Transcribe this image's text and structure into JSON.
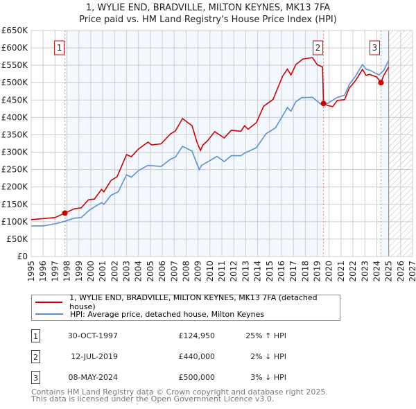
{
  "chart_data": {
    "type": "line",
    "title": "1, WYLIE END, BRADVILLE, MILTON KEYNES, MK13 7FA",
    "subtitle": "Price paid vs. HM Land Registry's House Price Index (HPI)",
    "xlim": [
      1995,
      2027
    ],
    "ylim": [
      0,
      650000
    ],
    "x_ticks": [
      "1995",
      "1996",
      "1997",
      "1998",
      "1999",
      "2000",
      "2001",
      "2002",
      "2003",
      "2004",
      "2005",
      "2006",
      "2007",
      "2008",
      "2009",
      "2010",
      "2011",
      "2012",
      "2013",
      "2014",
      "2015",
      "2016",
      "2017",
      "2018",
      "2019",
      "2020",
      "2021",
      "2022",
      "2023",
      "2024",
      "2025",
      "2026",
      "2027"
    ],
    "y_ticks": [
      {
        "value": 0,
        "label": "£0"
      },
      {
        "value": 50000,
        "label": "£50K"
      },
      {
        "value": 100000,
        "label": "£100K"
      },
      {
        "value": 150000,
        "label": "£150K"
      },
      {
        "value": 200000,
        "label": "£200K"
      },
      {
        "value": 250000,
        "label": "£250K"
      },
      {
        "value": 300000,
        "label": "£300K"
      },
      {
        "value": 350000,
        "label": "£350K"
      },
      {
        "value": 400000,
        "label": "£400K"
      },
      {
        "value": 450000,
        "label": "£450K"
      },
      {
        "value": 500000,
        "label": "£500K"
      },
      {
        "value": 550000,
        "label": "£550K"
      },
      {
        "value": 600000,
        "label": "£600K"
      },
      {
        "value": 650000,
        "label": "£650K"
      }
    ],
    "grid": true,
    "forecast_hatch_from": 2025.0,
    "ownership_shading": [
      [
        1997.83,
        2019.53
      ],
      [
        2024.35,
        2025.0
      ]
    ],
    "series": [
      {
        "name": "1, WYLIE END, BRADVILLE, MILTON KEYNES, MK13 7FA (detached house)",
        "color": "#cc0000",
        "x": [
          1995,
          1996,
          1997,
          1997.83,
          1998.6,
          1999.2,
          1999.8,
          2000.3,
          2000.9,
          2001.1,
          2001.7,
          2002.2,
          2003,
          2003.4,
          2004,
          2004.8,
          2005.1,
          2005.9,
          2006.7,
          2007.1,
          2007.7,
          2008.1,
          2008.5,
          2008.9,
          2009.2,
          2009.4,
          2009.8,
          2010.4,
          2011.2,
          2011.8,
          2012.6,
          2012.9,
          2013.2,
          2013.9,
          2014.5,
          2015.3,
          2016.1,
          2016.5,
          2016.8,
          2017.2,
          2017.8,
          2018.6,
          2019,
          2019.45,
          2019.53,
          2019.9,
          2020.3,
          2020.7,
          2021.3,
          2021.7,
          2022.2,
          2022.8,
          2023.1,
          2023.4,
          2024,
          2024.35,
          2024.6,
          2025
        ],
        "values": [
          106000,
          109000,
          112000,
          124950,
          137000,
          140000,
          163000,
          165000,
          193000,
          186000,
          219000,
          229000,
          293000,
          287000,
          309000,
          329000,
          321000,
          324000,
          353000,
          361000,
          397000,
          386000,
          376000,
          330000,
          305000,
          320000,
          333000,
          359000,
          341000,
          363000,
          360000,
          376000,
          366000,
          385000,
          432000,
          452000,
          519000,
          539000,
          522000,
          552000,
          568000,
          572000,
          552000,
          545000,
          440000,
          434000,
          431000,
          449000,
          451000,
          485000,
          505000,
          538000,
          521000,
          524000,
          516000,
          500000,
          522000,
          545000
        ]
      },
      {
        "name": "HPI: Average price, detached house, Milton Keynes",
        "color": "#5b8fd4",
        "x": [
          1995,
          1996,
          1997,
          1997.8,
          1998.6,
          1999.2,
          1999.9,
          2000.9,
          2001.1,
          2001.7,
          2002.3,
          2003,
          2003.4,
          2004,
          2004.8,
          2005.9,
          2006.7,
          2007.1,
          2007.7,
          2008.5,
          2009.1,
          2009.3,
          2009.8,
          2010.6,
          2011.2,
          2011.8,
          2012.6,
          2012.9,
          2013.9,
          2014.7,
          2015.5,
          2016.1,
          2016.5,
          2016.8,
          2017.2,
          2017.7,
          2018.6,
          2019.3,
          2019.9,
          2020.7,
          2021.3,
          2021.7,
          2022.2,
          2022.8,
          2023.1,
          2023.4,
          2024.2,
          2024.6,
          2025
        ],
        "values": [
          88000,
          88000,
          94000,
          101000,
          110000,
          112000,
          134000,
          155000,
          150000,
          176000,
          186000,
          235000,
          228000,
          247000,
          262000,
          259000,
          280000,
          286000,
          317000,
          303000,
          250000,
          262000,
          272000,
          288000,
          273000,
          290000,
          290000,
          297000,
          313000,
          353000,
          370000,
          405000,
          428000,
          418000,
          445000,
          457000,
          458000,
          438000,
          441000,
          458000,
          464000,
          495000,
          518000,
          552000,
          539000,
          536000,
          522000,
          536000,
          564000
        ]
      }
    ],
    "sales": [
      {
        "n": "1",
        "x": 1997.83,
        "price": 124950
      },
      {
        "n": "2",
        "x": 2019.53,
        "price": 440000
      },
      {
        "n": "3",
        "x": 2024.35,
        "price": 500000
      }
    ]
  },
  "legend": [
    {
      "label": "1, WYLIE END, BRADVILLE, MILTON KEYNES, MK13 7FA (detached house)",
      "color": "#cc0000"
    },
    {
      "label": "HPI: Average price, detached house, Milton Keynes",
      "color": "#5b8fd4"
    }
  ],
  "sales_table": [
    {
      "n": "1",
      "date": "30-OCT-1997",
      "price": "£124,950",
      "hpi": "25% ↑ HPI"
    },
    {
      "n": "2",
      "date": "12-JUL-2019",
      "price": "£440,000",
      "hpi": "2% ↓ HPI"
    },
    {
      "n": "3",
      "date": "08-MAY-2024",
      "price": "£500,000",
      "hpi": "3% ↓ HPI"
    }
  ],
  "footer": {
    "line1": "Contains HM Land Registry data © Crown copyright and database right 2025.",
    "line2": "This data is licensed under the Open Government Licence v3.0."
  }
}
